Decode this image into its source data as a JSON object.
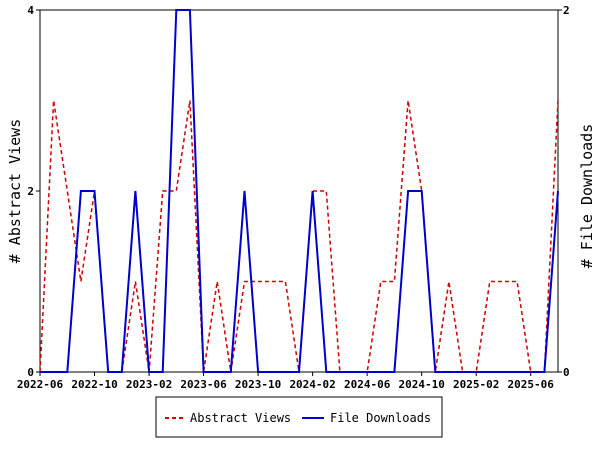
{
  "chart_data": {
    "type": "line",
    "x_tick_labels": [
      "2022-06",
      "2022-10",
      "2023-02",
      "2023-06",
      "2023-10",
      "2024-02",
      "2024-06",
      "2024-10",
      "2025-02",
      "2025-06"
    ],
    "x_tick_month_index": [
      0,
      4,
      8,
      12,
      16,
      20,
      24,
      28,
      32,
      36
    ],
    "x_range": [
      0,
      38
    ],
    "series": [
      {
        "name": "Abstract Views",
        "axis": "left",
        "color": "#cc0000",
        "style": "dashed",
        "x": [
          0,
          1,
          2,
          3,
          4,
          5,
          6,
          7,
          8,
          9,
          10,
          11,
          12,
          13,
          14,
          15,
          16,
          17,
          18,
          19,
          20,
          21,
          22,
          23,
          24,
          25,
          26,
          27,
          28,
          29,
          30,
          31,
          32,
          33,
          34,
          35,
          36,
          37,
          38
        ],
        "values": [
          0,
          3,
          2,
          1,
          2,
          0,
          0,
          1,
          0,
          2,
          2,
          3,
          0,
          1,
          0,
          1,
          1,
          1,
          1,
          0,
          2,
          2,
          0,
          0,
          0,
          1,
          1,
          3,
          2,
          0,
          1,
          0,
          0,
          1,
          1,
          1,
          0,
          0,
          3
        ]
      },
      {
        "name": "File Downloads",
        "axis": "right",
        "color": "#0000cc",
        "style": "solid",
        "x": [
          0,
          1,
          2,
          3,
          4,
          5,
          6,
          7,
          8,
          9,
          10,
          11,
          12,
          13,
          14,
          15,
          16,
          17,
          18,
          19,
          20,
          21,
          22,
          23,
          24,
          25,
          26,
          27,
          28,
          29,
          30,
          31,
          32,
          33,
          34,
          35,
          36,
          37,
          38
        ],
        "values": [
          0,
          0,
          0,
          1,
          1,
          0,
          0,
          1,
          0,
          0,
          2,
          2,
          0,
          0,
          0,
          1,
          0,
          0,
          0,
          0,
          1,
          0,
          0,
          0,
          0,
          0,
          0,
          1,
          1,
          0,
          0,
          0,
          0,
          0,
          0,
          0,
          0,
          0,
          1
        ]
      }
    ],
    "y_left": {
      "label": "# Abstract Views",
      "range": [
        0,
        4
      ],
      "ticks": [
        0,
        2,
        4
      ]
    },
    "y_right": {
      "label": "# File Downloads",
      "range": [
        0,
        2
      ],
      "ticks": [
        0,
        2
      ]
    },
    "grid": false,
    "legend_placement": "bottom"
  }
}
